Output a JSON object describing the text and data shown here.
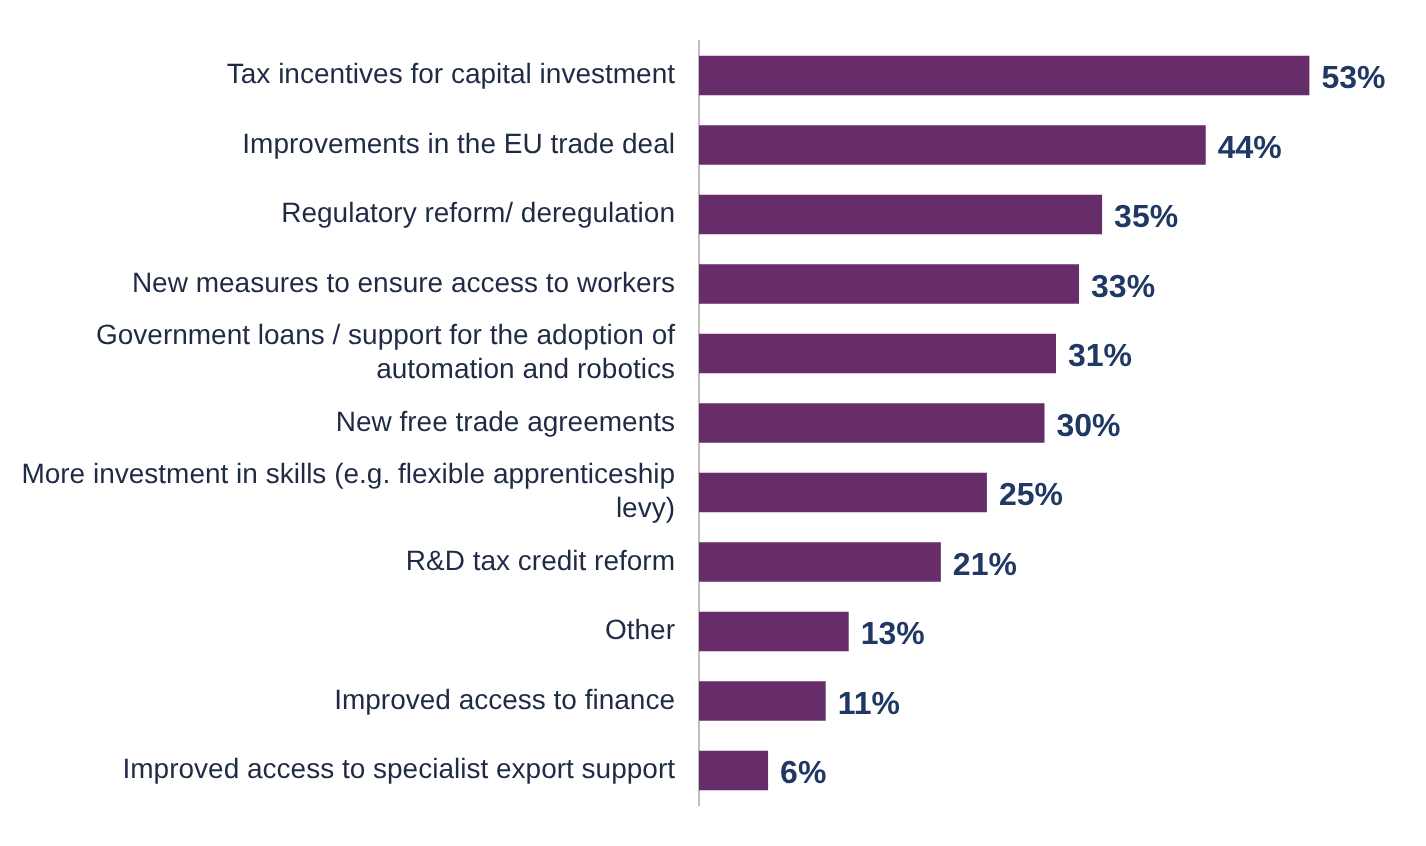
{
  "chart_data": {
    "type": "bar",
    "orientation": "horizontal",
    "categories": [
      "Tax incentives for capital investment",
      "Improvements in the EU trade deal",
      "Regulatory reform/ deregulation",
      "New measures to ensure access to workers",
      "Government loans / support for the adoption of automation and robotics",
      "New free trade agreements",
      "More investment in skills (e.g. flexible apprenticeship levy)",
      "R&D tax credit reform",
      "Other",
      "Improved access to finance",
      "Improved access to specialist export support"
    ],
    "values": [
      53,
      44,
      35,
      33,
      31,
      30,
      25,
      21,
      13,
      11,
      6
    ],
    "value_labels": [
      "53%",
      "44%",
      "35%",
      "33%",
      "31%",
      "30%",
      "25%",
      "21%",
      "13%",
      "11%",
      "6%"
    ],
    "color": "#672d6a"
  }
}
